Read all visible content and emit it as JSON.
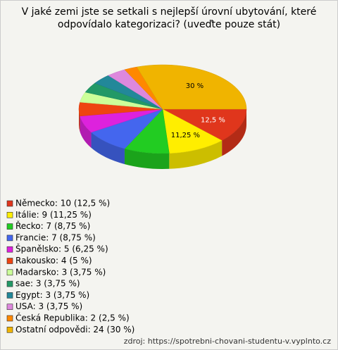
{
  "chart_data": {
    "type": "pie",
    "title": [
      "V jaké zemi jste se setkali s nejlepší úrovní ubytování, které",
      "odpovídalo kategorizaci? (uveďte pouze stát)"
    ],
    "categories": [
      "Německo: 10 (12,5 %)",
      "Itálie: 9 (11,25 %)",
      "Řecko: 7 (8,75 %)",
      "Francie: 7 (8,75 %)",
      "Španělsko: 5 (6,25 %)",
      "Rakousko: 4 (5 %)",
      "Madarsko: 3 (3,75 %)",
      "sae: 3 (3,75 %)",
      "Egypt: 3 (3,75 %)",
      "USA: 3 (3,75 %)",
      "Česká Republika: 2 (2,5 %)",
      "Ostatní odpovědi: 24 (30 %)"
    ],
    "values": [
      12.5,
      11.25,
      8.75,
      8.75,
      6.25,
      5,
      3.75,
      3.75,
      3.75,
      3.75,
      2.5,
      30
    ],
    "value_labels": [
      "12,5 %",
      "11,25 %",
      null,
      null,
      null,
      null,
      null,
      null,
      null,
      null,
      null,
      "30 %"
    ],
    "colors": [
      "#e0361c",
      "#ffee00",
      "#22cc22",
      "#4466ee",
      "#dd22dd",
      "#ee4411",
      "#ccff99",
      "#229966",
      "#228899",
      "#dd88dd",
      "#ff8800",
      "#f0b400"
    ],
    "source": "zdroj: https://spotrebni-chovani-studentu-v.vyplnto.cz"
  }
}
